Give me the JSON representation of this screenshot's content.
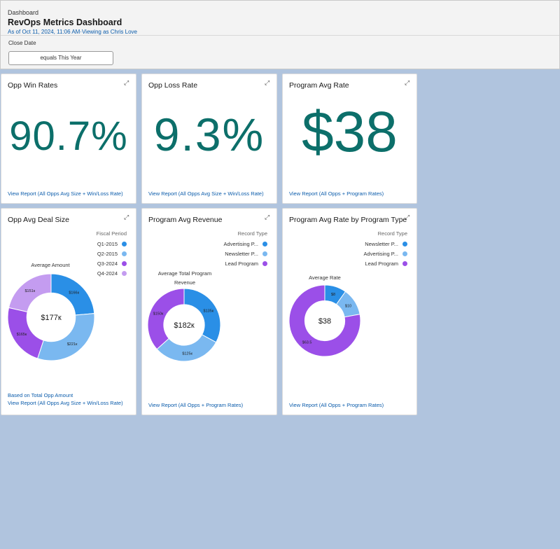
{
  "header": {
    "breadcrumb": "Dashboard",
    "title": "RevOps Metrics Dashboard",
    "as_of": "As of Oct 11, 2024, 11:06 AM·Viewing as Chris Love",
    "filter_label": "Close Date",
    "filter_value": "equals This Year"
  },
  "cards": {
    "win_rate": {
      "title": "Opp Win Rates",
      "value": "90.7%",
      "link": "View Report (All Opps Avg Size + Win/Loss Rate)"
    },
    "loss_rate": {
      "title": "Opp Loss Rate",
      "value": "9.3%",
      "link": "View Report (All Opps Avg Size + Win/Loss Rate)"
    },
    "program_avg_rate": {
      "title": "Program Avg Rate",
      "value": "$38",
      "link": "View Report (All Opps + Program Rates)"
    },
    "avg_deal_size": {
      "title": "Opp Avg Deal Size",
      "legend_title": "Fiscal Period",
      "chart_label": "Average Amount",
      "center": "$177к",
      "footer": "Based on Total Opp Amount",
      "link": "View Report (All Opps Avg Size + Win/Loss Rate)"
    },
    "program_avg_revenue": {
      "title": "Program Avg Revenue",
      "legend_title": "Record Type",
      "chart_label": "Average Total Program Revenue",
      "center": "$182к",
      "link": "View Report (All Opps + Program Rates)"
    },
    "program_avg_rate_by_type": {
      "title": "Program Avg Rate by Program Type",
      "legend_title": "Record Type",
      "chart_label": "Average Rate",
      "center": "$38",
      "link": "View Report (All Opps + Program Rates)"
    }
  },
  "colors": {
    "dark_blue": "#2a8fe6",
    "light_blue": "#7ab8f0",
    "purple": "#9b4fe8",
    "lavender": "#c49cf0",
    "metric_teal": "#0c6f6a"
  },
  "chart_data": [
    {
      "type": "pie",
      "categories": [
        "Q1-2015",
        "Q2-2015",
        "Q3-2024",
        "Q4-2024"
      ],
      "values": [
        166,
        221,
        165,
        151
      ],
      "labels": [
        "$166к",
        "$221к",
        "$165к",
        "$151к"
      ],
      "colors": [
        "#2a8fe6",
        "#7ab8f0",
        "#9b4fe8",
        "#c49cf0"
      ]
    },
    {
      "type": "pie",
      "categories": [
        "Advertising P...",
        "Newsletter P...",
        "Lead Program"
      ],
      "values": [
        135,
        125,
        150
      ],
      "labels": [
        "$135к",
        "$125к",
        "$150к"
      ],
      "colors": [
        "#2a8fe6",
        "#7ab8f0",
        "#9b4fe8"
      ]
    },
    {
      "type": "pie",
      "categories": [
        "Newsletter P...",
        "Advertising P...",
        "Lead Program"
      ],
      "values": [
        8,
        10,
        63.5
      ],
      "labels": [
        "$8",
        "$10",
        "$63.5"
      ],
      "colors": [
        "#2a8fe6",
        "#7ab8f0",
        "#9b4fe8"
      ]
    }
  ]
}
